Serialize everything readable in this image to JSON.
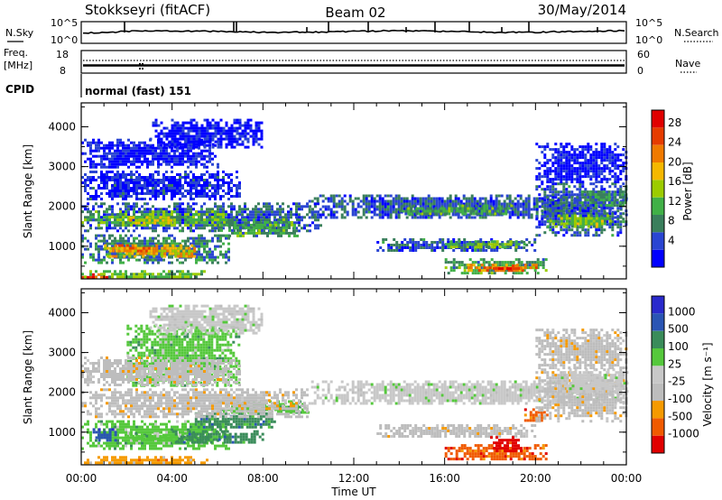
{
  "header": {
    "station": "Stokkseyri (fitACF)",
    "beam": "Beam 02",
    "date": "30/May/2014"
  },
  "summary": {
    "nsky_label": "N.Sky",
    "nsearch_label": "N.Search",
    "noise_ticks": [
      "10^5",
      "10^0"
    ],
    "freq_label": "Freq.",
    "freq_unit": "[MHz]",
    "freq_ticks": [
      "18",
      "8"
    ],
    "nave_label": "Nave",
    "nave_ticks": [
      "60",
      "0"
    ],
    "cpid_label": "CPID",
    "cpid_value": "normal (fast) 151"
  },
  "x_ticks": [
    "00:00",
    "04:00",
    "08:00",
    "12:00",
    "16:00",
    "20:00",
    "00:00"
  ],
  "xlabel": "Time UT",
  "colors": {
    "power_scale": [
      "#0000ff",
      "#2a45d2",
      "#3a7f5c",
      "#41b047",
      "#9ccc00",
      "#f5b800",
      "#f07a00",
      "#e63c00",
      "#e00000"
    ],
    "velocity_scale": [
      "#e00000",
      "#f05a00",
      "#f59a00",
      "#bdbdbd",
      "#c8c8c8",
      "#55c83c",
      "#3a8c5a",
      "#2a55b4",
      "#2a2acc"
    ]
  },
  "chart_data": [
    {
      "type": "heatmap",
      "title": "Power",
      "xlabel": "Time UT",
      "ylabel": "Slant Range [km]",
      "yticks": [
        "1000",
        "2000",
        "3000",
        "4000"
      ],
      "colorbar_label": "Power [dB]",
      "colorbar_ticks": [
        "4",
        "8",
        "12",
        "16",
        "20",
        "24",
        "28"
      ],
      "xlim": [
        0,
        24
      ],
      "ylim": [
        180,
        4600
      ],
      "regions": [
        {
          "t0": 0.0,
          "t1": 5.5,
          "r0": 200,
          "r1": 400,
          "v": 14
        },
        {
          "t0": 0.0,
          "t1": 1.2,
          "r0": 200,
          "r1": 320,
          "v": 26
        },
        {
          "t0": 0.0,
          "t1": 6.5,
          "r0": 600,
          "r1": 1300,
          "v": 10
        },
        {
          "t0": 1.0,
          "t1": 5.0,
          "r0": 750,
          "r1": 1050,
          "v": 20
        },
        {
          "t0": 1.5,
          "t1": 3.0,
          "r0": 850,
          "r1": 1050,
          "v": 24
        },
        {
          "t0": 0.0,
          "t1": 10.5,
          "r0": 1400,
          "r1": 2100,
          "v": 8
        },
        {
          "t0": 0.0,
          "t1": 6.5,
          "r0": 1550,
          "r1": 1900,
          "v": 14
        },
        {
          "t0": 2.0,
          "t1": 4.0,
          "r0": 1600,
          "r1": 1750,
          "v": 18
        },
        {
          "t0": 6.0,
          "t1": 9.5,
          "r0": 1250,
          "r1": 1700,
          "v": 12
        },
        {
          "t0": 0.0,
          "t1": 7.0,
          "r0": 2200,
          "r1": 2900,
          "v": 5
        },
        {
          "t0": 0.0,
          "t1": 6.0,
          "r0": 3000,
          "r1": 3700,
          "v": 4
        },
        {
          "t0": 10.0,
          "t1": 24.0,
          "r0": 1700,
          "r1": 2300,
          "v": 8
        },
        {
          "t0": 14.0,
          "t1": 19.0,
          "r0": 1800,
          "r1": 2050,
          "v": 12
        },
        {
          "t0": 13.0,
          "t1": 20.0,
          "r0": 900,
          "r1": 1200,
          "v": 8
        },
        {
          "t0": 16.0,
          "t1": 19.5,
          "r0": 1000,
          "r1": 1150,
          "v": 14
        },
        {
          "t0": 16.0,
          "t1": 20.5,
          "r0": 350,
          "r1": 700,
          "v": 12
        },
        {
          "t0": 17.0,
          "t1": 20.0,
          "r0": 400,
          "r1": 560,
          "v": 22
        },
        {
          "t0": 18.0,
          "t1": 19.5,
          "r0": 430,
          "r1": 540,
          "v": 27
        },
        {
          "t0": 20.0,
          "t1": 24.0,
          "r0": 1300,
          "r1": 2600,
          "v": 8
        },
        {
          "t0": 20.5,
          "t1": 23.5,
          "r0": 1500,
          "r1": 1800,
          "v": 15
        },
        {
          "t0": 22.0,
          "t1": 24.0,
          "r0": 2000,
          "r1": 2400,
          "v": 11
        },
        {
          "t0": 20.0,
          "t1": 24.0,
          "r0": 2600,
          "r1": 3600,
          "v": 4
        },
        {
          "t0": 3.0,
          "t1": 8.0,
          "r0": 3500,
          "r1": 4200,
          "v": 4
        }
      ]
    },
    {
      "type": "heatmap",
      "title": "Velocity",
      "xlabel": "Time UT",
      "ylabel": "Slant Range [km]",
      "yticks": [
        "1000",
        "2000",
        "3000",
        "4000"
      ],
      "colorbar_label": "Velocity [m s⁻¹]",
      "colorbar_ticks": [
        "1000",
        "500",
        "100",
        "25",
        "-25",
        "-100",
        "-500",
        "-1000"
      ],
      "xlim": [
        0,
        24
      ],
      "ylim": [
        180,
        4600
      ],
      "regions": [
        {
          "t0": 0.0,
          "t1": 5.5,
          "r0": 200,
          "r1": 400,
          "v": 2
        },
        {
          "t0": 0.0,
          "t1": 6.5,
          "r0": 600,
          "r1": 1300,
          "v": 5
        },
        {
          "t0": 0.5,
          "t1": 1.5,
          "r0": 800,
          "r1": 1100,
          "v": 7
        },
        {
          "t0": 2.0,
          "t1": 5.0,
          "r0": 800,
          "r1": 1000,
          "v": 5
        },
        {
          "t0": 4.0,
          "t1": 8.0,
          "r0": 750,
          "r1": 1050,
          "v": 6
        },
        {
          "t0": 5.0,
          "t1": 8.5,
          "r0": 1100,
          "r1": 1500,
          "v": 6
        },
        {
          "t0": 6.0,
          "t1": 10.0,
          "r0": 1500,
          "r1": 1800,
          "v": 5
        },
        {
          "t0": 0.0,
          "t1": 10.0,
          "r0": 1400,
          "r1": 2100,
          "v": 3
        },
        {
          "t0": 2.0,
          "t1": 7.0,
          "r0": 2200,
          "r1": 3700,
          "v": 5
        },
        {
          "t0": 0.0,
          "t1": 7.0,
          "r0": 2200,
          "r1": 2900,
          "v": 3
        },
        {
          "t0": 10.0,
          "t1": 24.0,
          "r0": 1700,
          "r1": 2300,
          "v": 4
        },
        {
          "t0": 13.0,
          "t1": 20.0,
          "r0": 900,
          "r1": 1200,
          "v": 3
        },
        {
          "t0": 16.0,
          "t1": 20.5,
          "r0": 300,
          "r1": 700,
          "v": 1
        },
        {
          "t0": 18.0,
          "t1": 19.5,
          "r0": 500,
          "r1": 900,
          "v": 0
        },
        {
          "t0": 19.5,
          "t1": 20.5,
          "r0": 1300,
          "r1": 1600,
          "v": 1
        },
        {
          "t0": 20.0,
          "t1": 24.0,
          "r0": 1300,
          "r1": 2600,
          "v": 3
        },
        {
          "t0": 21.0,
          "t1": 24.0,
          "r0": 2000,
          "r1": 2600,
          "v": 4
        },
        {
          "t0": 20.0,
          "t1": 24.0,
          "r0": 2600,
          "r1": 3600,
          "v": 3
        },
        {
          "t0": 3.0,
          "t1": 8.0,
          "r0": 3500,
          "r1": 4200,
          "v": 4
        }
      ]
    }
  ]
}
